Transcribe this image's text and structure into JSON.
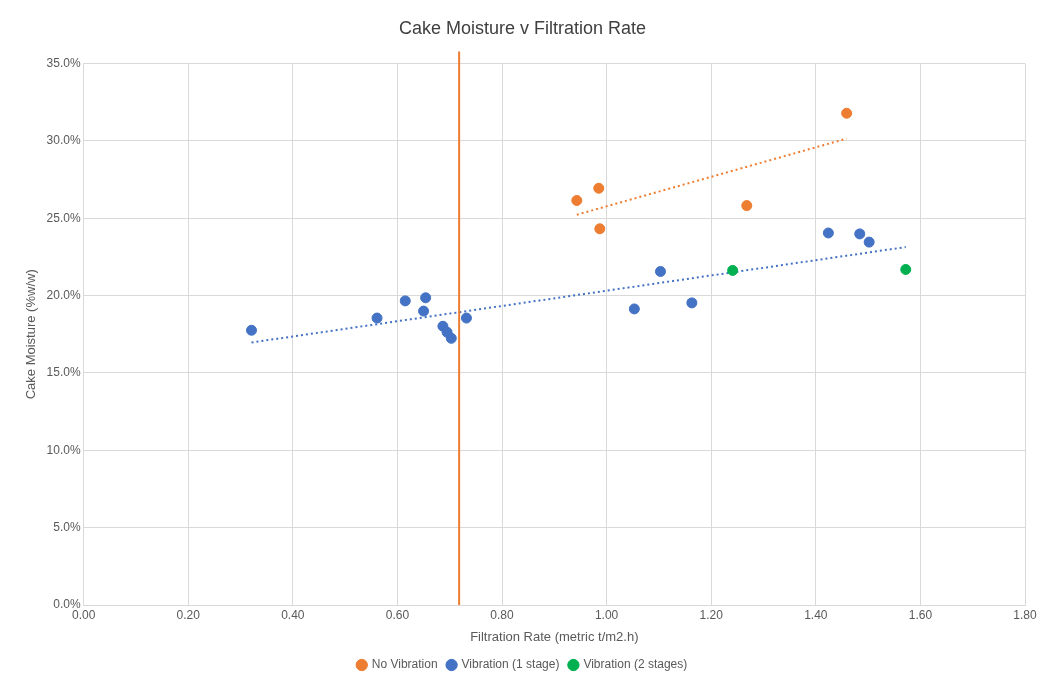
{
  "chart_data": {
    "type": "scatter",
    "title": "Cake Moisture v Filtration Rate",
    "xlabel": "Filtration Rate (metric t/m2.h)",
    "ylabel": "Cake Moisture (%w/w)",
    "series": [
      {
        "name": "No Vibration",
        "color": "#ed7d31",
        "x": [
          0.943,
          0.985,
          0.987,
          1.268,
          1.459
        ],
        "values": [
          26.15,
          26.94,
          24.32,
          25.82,
          31.79
        ]
      },
      {
        "name": "Vibration (1 stage)",
        "color": "#4472c4",
        "x": [
          0.321,
          0.561,
          0.615,
          0.65,
          0.654,
          0.687,
          0.695,
          0.703,
          0.732,
          1.053,
          1.103,
          1.163,
          1.424,
          1.484,
          1.502
        ],
        "values": [
          17.76,
          18.55,
          19.66,
          19.0,
          19.86,
          18.02,
          17.63,
          17.24,
          18.55,
          19.14,
          21.56,
          19.53,
          24.05,
          23.99,
          23.46
        ]
      },
      {
        "name": "Vibration (2 stages)",
        "color": "#00b050",
        "x": [
          1.241,
          1.572
        ],
        "values": [
          21.63,
          21.69
        ]
      },
      {
        "type": "line",
        "color": "#ed7d31",
        "line_style": "dotted",
        "marker": "none",
        "x": [
          0.943,
          1.459
        ],
        "values": [
          25.23,
          30.15
        ]
      },
      {
        "type": "line",
        "color": "#4472c4",
        "line_style": "dotted",
        "marker": "none",
        "x": [
          0.321,
          1.572
        ],
        "values": [
          16.97,
          23.14
        ]
      }
    ],
    "marker": "circle",
    "ref_lines": [
      {
        "axis": "x",
        "value": 0.718,
        "color": "#ed7d31"
      }
    ],
    "xlim": [
      0,
      1.8
    ],
    "xticks": [
      {
        "value": 0,
        "label": "0.00"
      },
      {
        "value": 0.2,
        "label": "0.20"
      },
      {
        "value": 0.4,
        "label": "0.40"
      },
      {
        "value": 0.6,
        "label": "0.60"
      },
      {
        "value": 0.8,
        "label": "0.80"
      },
      {
        "value": 1.0,
        "label": "1.00"
      },
      {
        "value": 1.2,
        "label": "1.20"
      },
      {
        "value": 1.4,
        "label": "1.40"
      },
      {
        "value": 1.6,
        "label": "1.60"
      },
      {
        "value": 1.8,
        "label": "1.80"
      }
    ],
    "ylim": [
      0,
      35
    ],
    "yticks": [
      {
        "value": 0,
        "label": "0.0%"
      },
      {
        "value": 5,
        "label": "5.0%"
      },
      {
        "value": 10,
        "label": "10.0%"
      },
      {
        "value": 15,
        "label": "15.0%"
      },
      {
        "value": 20,
        "label": "20.0%"
      },
      {
        "value": 25,
        "label": "25.0%"
      },
      {
        "value": 30,
        "label": "30.0%"
      },
      {
        "value": 35,
        "label": "35.0%"
      }
    ],
    "grid": true,
    "legend": "bottom"
  }
}
